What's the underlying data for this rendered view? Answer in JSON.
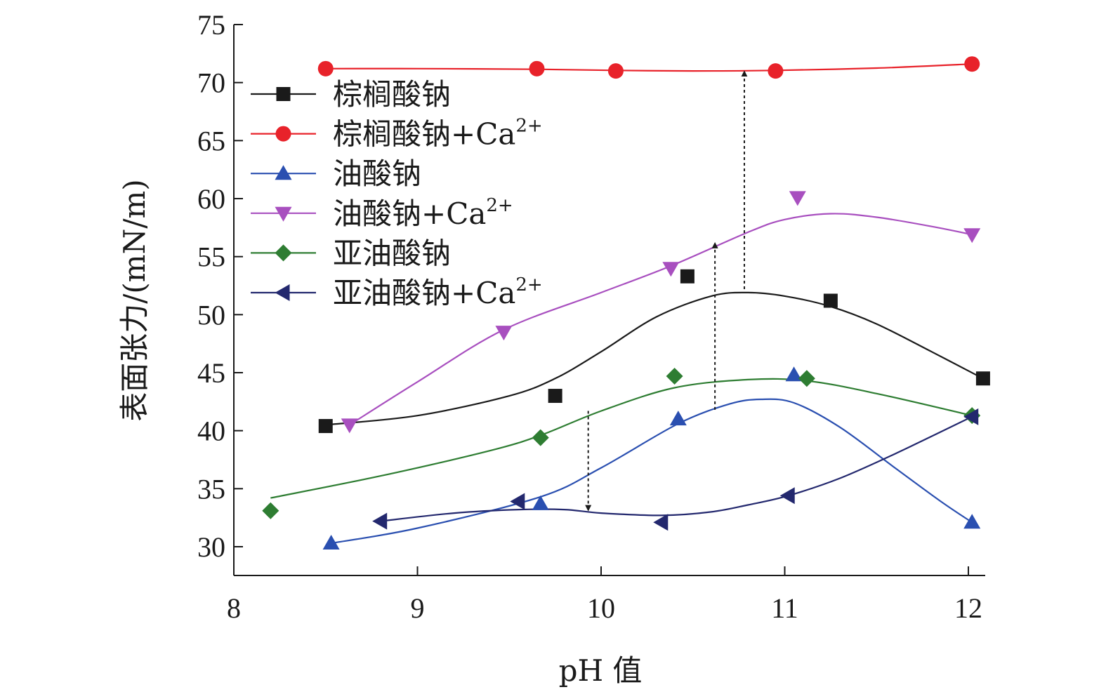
{
  "chart_data": {
    "type": "scatter",
    "xlabel": "pH 值",
    "ylabel": "表面张力/(mN/m)",
    "xlim": [
      8,
      12.2
    ],
    "ylim": [
      27.5,
      75
    ],
    "xticks": [
      8,
      9,
      10,
      11,
      12
    ],
    "yticks": [
      30,
      35,
      40,
      45,
      50,
      55,
      60,
      65,
      70,
      75
    ],
    "grid": false,
    "legend_position": "top-left",
    "series": [
      {
        "name": "棕榈酸钠",
        "name_main": "棕榈酸钠",
        "name_sup": "",
        "color": "#1a1a1a",
        "marker": "square",
        "x": [
          8.5,
          9.75,
          10.47,
          11.25,
          12.08
        ],
        "y": [
          40.4,
          43.0,
          53.3,
          51.2,
          44.5
        ],
        "curve_x": [
          8.5,
          9.0,
          9.5,
          9.75,
          10.0,
          10.3,
          10.6,
          10.8,
          11.0,
          11.25,
          11.5,
          11.8,
          12.08
        ],
        "curve_y": [
          40.5,
          41.3,
          43.0,
          44.5,
          46.8,
          49.8,
          51.6,
          51.9,
          51.6,
          50.7,
          49.2,
          46.8,
          44.5
        ]
      },
      {
        "name": "棕榈酸钠+Ca2+",
        "name_main": "棕榈酸钠+Ca",
        "name_sup": "2+",
        "color": "#e8222a",
        "marker": "circle",
        "x": [
          8.5,
          9.65,
          10.08,
          10.95,
          12.02
        ],
        "y": [
          71.2,
          71.2,
          71.0,
          71.0,
          71.6
        ],
        "curve_x": [
          8.5,
          9.0,
          9.65,
          10.08,
          10.5,
          10.95,
          11.5,
          12.02
        ],
        "curve_y": [
          71.2,
          71.2,
          71.15,
          71.05,
          71.0,
          71.05,
          71.25,
          71.6
        ]
      },
      {
        "name": "油酸钠",
        "name_main": "油酸钠",
        "name_sup": "",
        "color": "#2a4fb0",
        "marker": "triangle-up",
        "x": [
          8.53,
          9.67,
          10.42,
          11.05,
          12.02
        ],
        "y": [
          30.3,
          33.7,
          41.0,
          44.8,
          32.1
        ],
        "curve_x": [
          8.53,
          9.0,
          9.67,
          10.0,
          10.42,
          10.7,
          10.87,
          11.05,
          11.3,
          11.6,
          11.85,
          12.02
        ],
        "curve_y": [
          30.3,
          31.6,
          34.3,
          36.8,
          40.6,
          42.3,
          42.7,
          42.4,
          40.3,
          36.8,
          33.9,
          32.1
        ]
      },
      {
        "name": "油酸钠+Ca2+",
        "name_main": "油酸钠+Ca",
        "name_sup": "2+",
        "color": "#a84fbf",
        "marker": "triangle-down",
        "x": [
          8.63,
          9.47,
          10.38,
          11.07,
          12.02
        ],
        "y": [
          40.5,
          48.5,
          54.0,
          60.1,
          56.9
        ],
        "curve_x": [
          8.63,
          9.0,
          9.47,
          10.0,
          10.38,
          10.8,
          11.0,
          11.25,
          11.5,
          11.8,
          12.02
        ],
        "curve_y": [
          40.5,
          44.2,
          48.7,
          51.9,
          54.2,
          57.1,
          58.2,
          58.7,
          58.4,
          57.6,
          56.9
        ]
      },
      {
        "name": "亚油酸钠",
        "name_main": "亚油酸钠",
        "name_sup": "",
        "color": "#2e7d32",
        "marker": "diamond",
        "x": [
          8.2,
          9.67,
          10.4,
          11.12,
          12.02
        ],
        "y": [
          33.1,
          39.4,
          44.7,
          44.5,
          41.3
        ],
        "curve_x": [
          8.2,
          8.8,
          9.4,
          9.67,
          10.0,
          10.4,
          10.8,
          11.12,
          11.5,
          12.02
        ],
        "curve_y": [
          34.2,
          36.1,
          38.3,
          39.6,
          41.7,
          43.7,
          44.4,
          44.3,
          43.2,
          41.3
        ]
      },
      {
        "name": "亚油酸钠+Ca2+",
        "name_main": "亚油酸钠+Ca",
        "name_sup": "2+",
        "color": "#23286e",
        "marker": "triangle-left",
        "x": [
          8.8,
          9.55,
          10.33,
          11.02,
          12.02
        ],
        "y": [
          32.2,
          33.9,
          32.1,
          34.4,
          41.2
        ],
        "curve_x": [
          8.8,
          9.2,
          9.55,
          9.8,
          10.0,
          10.33,
          10.6,
          10.8,
          11.02,
          11.3,
          11.6,
          12.02
        ],
        "curve_y": [
          32.2,
          32.9,
          33.2,
          33.2,
          32.9,
          32.7,
          33.0,
          33.6,
          34.4,
          35.9,
          38.0,
          41.2
        ]
      }
    ],
    "annotations": [
      {
        "type": "dotted-arrow",
        "x": 9.93,
        "y_from": 41.7,
        "y_to": 33.1,
        "head": "end"
      },
      {
        "type": "dotted-arrow",
        "x": 10.62,
        "y_from": 41.8,
        "y_to": 56.2,
        "head": "end"
      },
      {
        "type": "dotted-arrow",
        "x": 10.78,
        "y_from": 52.2,
        "y_to": 71.0,
        "head": "end"
      }
    ]
  }
}
